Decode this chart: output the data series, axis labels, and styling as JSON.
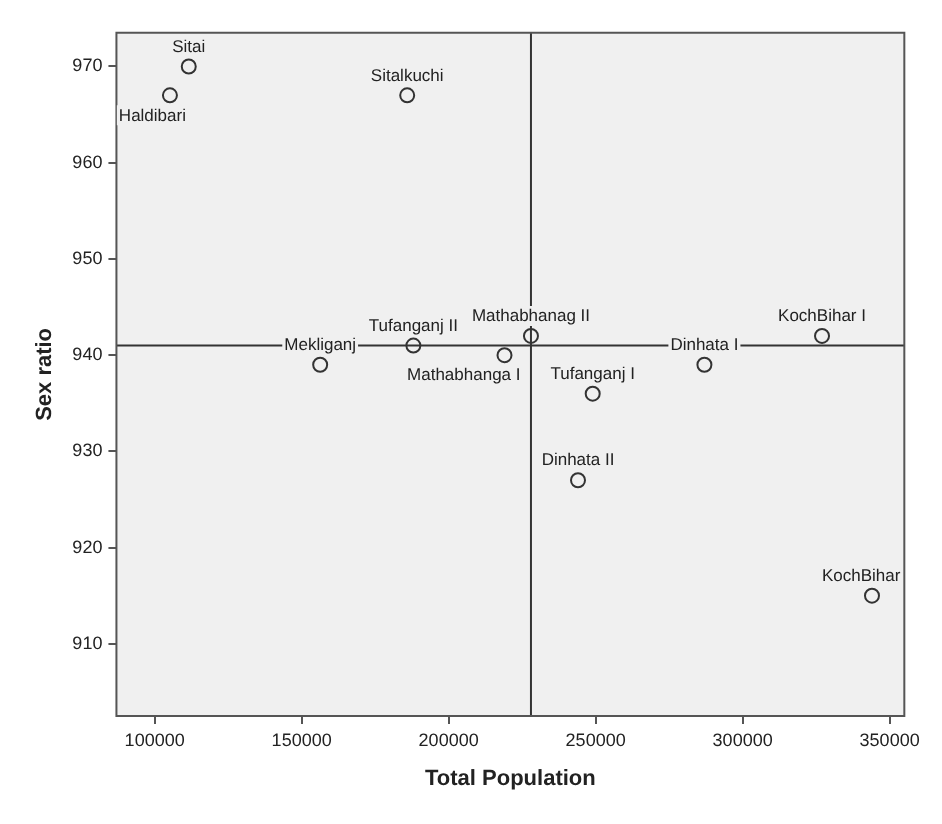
{
  "chart_data": {
    "type": "scatter",
    "xlabel": "Total Population",
    "ylabel": "Sex ratio",
    "x": [
      111600,
      105200,
      185900,
      156300,
      188000,
      219000,
      228000,
      249000,
      244000,
      287000,
      327000,
      344000
    ],
    "series": [
      {
        "color": "#333333",
        "values": [
          970,
          967,
          967,
          939,
          941,
          940,
          942,
          936,
          927,
          939,
          942,
          915
        ]
      }
    ],
    "annotations": [
      {
        "text": "Sitai",
        "x": 111600,
        "y": 970
      },
      {
        "text": "Haldibari",
        "x": 105200,
        "y": 967
      },
      {
        "text": "Sitalkuchi",
        "x": 185900,
        "y": 967
      },
      {
        "text": "Mekliganj",
        "x": 156300,
        "y": 939
      },
      {
        "text": "Tufanganj II",
        "x": 188000,
        "y": 941
      },
      {
        "text": "Mathabhanga I",
        "x": 219000,
        "y": 940
      },
      {
        "text": "Mathabhanag II",
        "x": 228000,
        "y": 942
      },
      {
        "text": "Tufanganj I",
        "x": 249000,
        "y": 936
      },
      {
        "text": "Dinhata II",
        "x": 244000,
        "y": 927
      },
      {
        "text": "Dinhata I",
        "x": 287000,
        "y": 939
      },
      {
        "text": "KochBihar I",
        "x": 327000,
        "y": 942
      },
      {
        "text": "KochBihar",
        "x": 344000,
        "y": 915
      }
    ],
    "ref_lines": [
      {
        "axis": "x",
        "value": 228000,
        "color": "#333333"
      },
      {
        "axis": "y",
        "value": 941,
        "color": "#333333"
      }
    ],
    "xlim": [
      87000,
      355000
    ],
    "xticks": [
      100000,
      150000,
      200000,
      250000,
      300000,
      350000
    ],
    "ylim": [
      902.5,
      973.5
    ],
    "yticks": [
      910,
      920,
      930,
      940,
      950,
      960,
      970
    ],
    "grid": false,
    "legend": false,
    "marker": "circle"
  }
}
